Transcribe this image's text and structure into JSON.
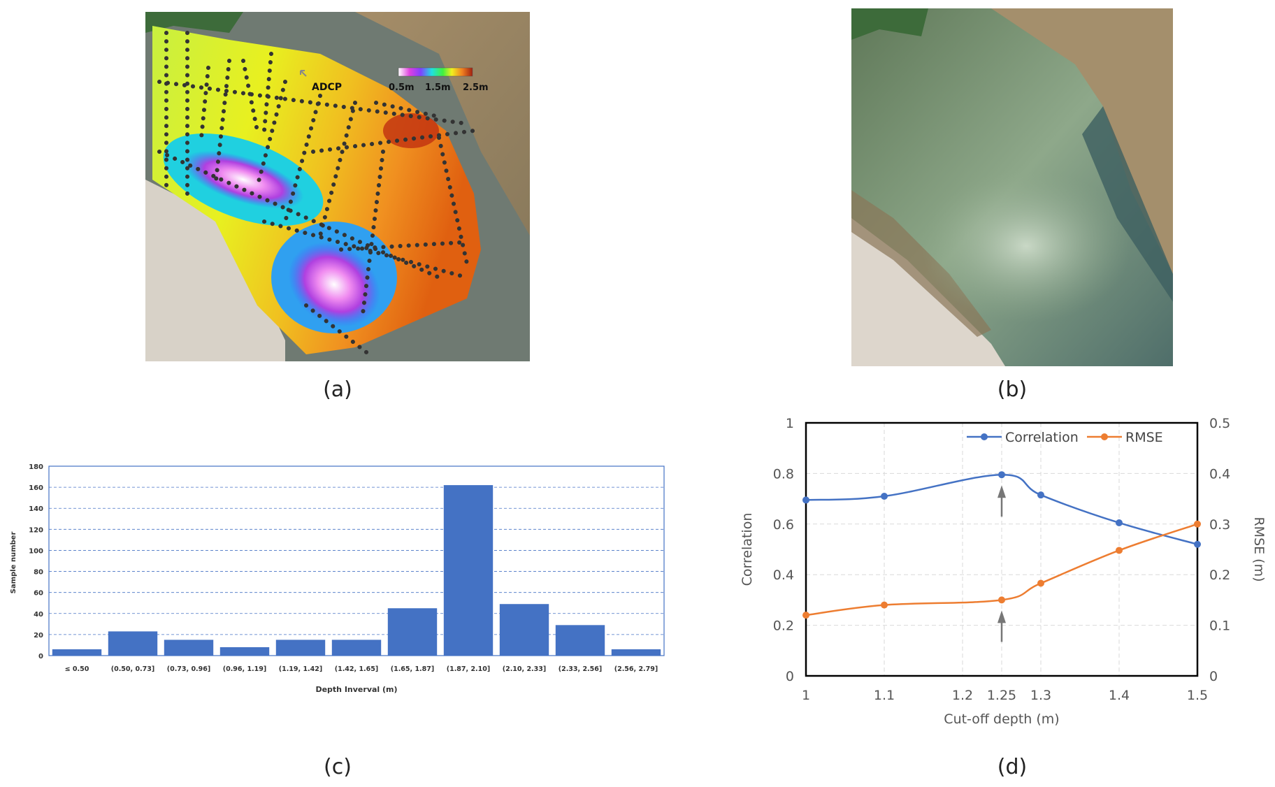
{
  "panels": {
    "a": {
      "caption": "(a)",
      "adcp_label": "ADCP",
      "colorbar": {
        "min_label": "0.5m",
        "mid_label": "1.5m",
        "max_label": "2.5m"
      }
    },
    "b": {
      "caption": "(b)"
    },
    "c": {
      "caption": "(c)"
    },
    "d": {
      "caption": "(d)"
    }
  },
  "chart_data": [
    {
      "id": "histogram",
      "type": "bar",
      "title": "",
      "xlabel": "Depth Inverval (m)",
      "ylabel": "Sample number",
      "ylim": [
        0,
        180
      ],
      "yticks": [
        0,
        20,
        40,
        60,
        80,
        100,
        120,
        140,
        160,
        180
      ],
      "grid": true,
      "categories": [
        "≤ 0.50",
        "(0.50, 0.73]",
        "(0.73, 0.96]",
        "(0.96, 1.19]",
        "(1.19, 1.42]",
        "(1.42, 1.65]",
        "(1.65, 1.87]",
        "(1.87, 2.10]",
        "(2.10, 2.33]",
        "(2.33, 2.56]",
        "(2.56, 2.79]"
      ],
      "values": [
        6,
        23,
        15,
        8,
        15,
        15,
        45,
        162,
        49,
        29,
        6
      ],
      "color": "#4472c4"
    },
    {
      "id": "cutoff",
      "type": "line",
      "title": "",
      "xlabel": "Cut-off depth (m)",
      "ylabel": "Correlation",
      "y2label": "RMSE (m)",
      "xlim": [
        1,
        1.5
      ],
      "ylim": [
        0,
        1
      ],
      "y2lim": [
        0,
        0.5
      ],
      "xticks": [
        "1",
        "1.1",
        "1.2",
        "1.25",
        "1.3",
        "1.4",
        "1.5"
      ],
      "xtick_values": [
        1,
        1.1,
        1.2,
        1.25,
        1.3,
        1.4,
        1.5
      ],
      "yticks": [
        "0",
        "0.2",
        "0.4",
        "0.6",
        "0.8",
        "1"
      ],
      "y2ticks": [
        "0",
        "0.1",
        "0.2",
        "0.3",
        "0.4",
        "0.5"
      ],
      "grid": true,
      "legend": "top-right",
      "series": [
        {
          "name": "Correlation",
          "axis": "left",
          "color": "#4472c4",
          "x": [
            1,
            1.1,
            1.25,
            1.3,
            1.4,
            1.5
          ],
          "values": [
            0.695,
            0.71,
            0.795,
            0.715,
            0.605,
            0.52
          ]
        },
        {
          "name": "RMSE",
          "axis": "right",
          "color": "#ed7d31",
          "x": [
            1,
            1.1,
            1.25,
            1.3,
            1.4,
            1.5
          ],
          "values": [
            0.12,
            0.14,
            0.15,
            0.183,
            0.248,
            0.3
          ]
        }
      ],
      "annotations": [
        "arrow at x=1.25 below Correlation peak",
        "arrow at x=1.25 below RMSE point"
      ]
    }
  ]
}
